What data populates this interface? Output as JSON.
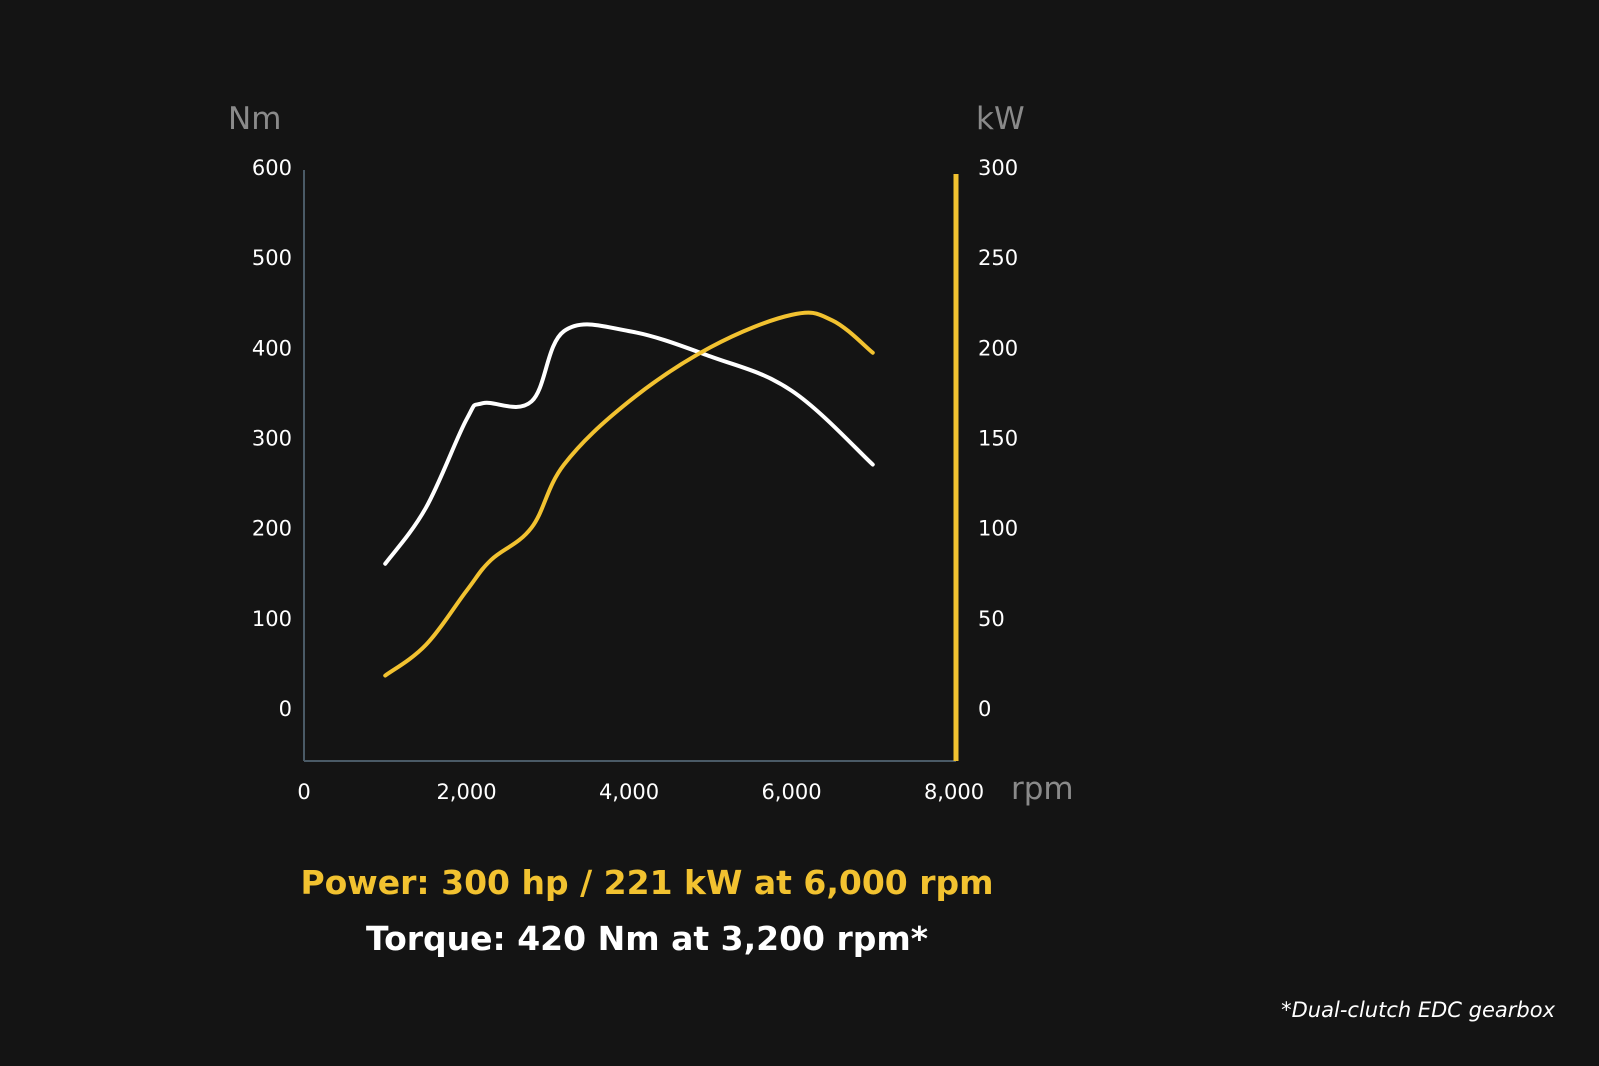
{
  "colors": {
    "background": "#141414",
    "torque": "#ffffff",
    "power": "#f2c230",
    "left_axis": "#4a5a66",
    "unit_label": "#8a8a8a"
  },
  "chart_data": {
    "type": "line",
    "x_unit": "rpm",
    "x_ticks": [
      "0",
      "2,000",
      "4,000",
      "6,000",
      "8,000"
    ],
    "xlim": [
      0,
      8000
    ],
    "y_left": {
      "unit": "Nm",
      "ticks": [
        "600",
        "500",
        "400",
        "300",
        "200",
        "100",
        "0"
      ],
      "ylim": [
        0,
        600
      ]
    },
    "y_right": {
      "unit": "kW",
      "ticks": [
        "300",
        "250",
        "200",
        "150",
        "100",
        "50",
        "0"
      ],
      "ylim": [
        0,
        300
      ]
    },
    "grid": false,
    "series": [
      {
        "axis": "left",
        "color": "#ffffff",
        "points": [
          [
            1000,
            160
          ],
          [
            1500,
            222
          ],
          [
            2000,
            320
          ],
          [
            2200,
            338
          ],
          [
            2800,
            340
          ],
          [
            3200,
            418
          ],
          [
            4000,
            418
          ],
          [
            5000,
            390
          ],
          [
            6000,
            352
          ],
          [
            7000,
            270
          ]
        ]
      },
      {
        "axis": "right",
        "color": "#f2c230",
        "points": [
          [
            1000,
            18
          ],
          [
            1500,
            35
          ],
          [
            2000,
            65
          ],
          [
            2300,
            82
          ],
          [
            2800,
            100
          ],
          [
            3200,
            135
          ],
          [
            4000,
            170
          ],
          [
            5000,
            200
          ],
          [
            6000,
            218
          ],
          [
            6500,
            215
          ],
          [
            7000,
            197
          ]
        ]
      }
    ]
  },
  "captions": {
    "power": "Power: 300 hp / 221 kW at 6,000 rpm",
    "torque": "Torque: 420 Nm at 3,200 rpm*"
  },
  "footnote": "*Dual-clutch EDC gearbox"
}
